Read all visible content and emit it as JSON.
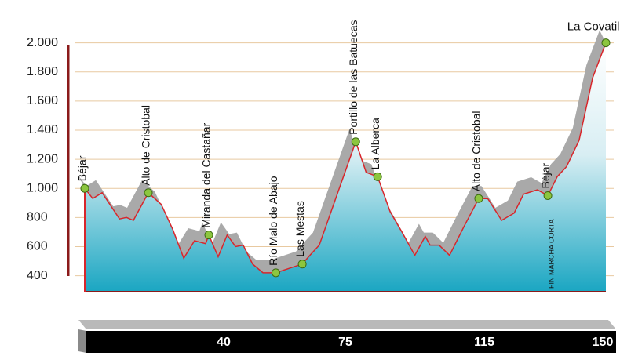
{
  "chart_data": {
    "type": "area",
    "x": [
      0,
      2.3,
      5,
      10,
      12,
      14,
      18.3,
      22,
      25.3,
      28.5,
      31.6,
      34.8,
      35.7,
      38.4,
      41,
      43.4,
      45.6,
      48.3,
      51.3,
      55,
      62.6,
      64.8,
      67.5,
      78,
      81,
      84.3,
      87.9,
      91.3,
      95,
      98,
      99.4,
      102,
      105,
      109,
      113.4,
      116,
      120,
      123.6,
      126.3,
      130.3,
      133.3,
      136,
      138.7,
      142.3,
      146.2,
      150
    ],
    "values": [
      1000,
      930,
      970,
      790,
      800,
      780,
      970,
      890,
      720,
      520,
      640,
      620,
      680,
      530,
      680,
      600,
      610,
      480,
      420,
      420,
      480,
      540,
      610,
      1320,
      1110,
      1080,
      840,
      700,
      540,
      670,
      610,
      610,
      540,
      730,
      930,
      930,
      780,
      830,
      960,
      990,
      950,
      1080,
      1150,
      1330,
      1760,
      2000
    ],
    "color": "#d8262b",
    "xlim": [
      0,
      150
    ],
    "xticks": [
      40,
      75,
      115,
      150
    ],
    "ylim": [
      290,
      2100
    ],
    "yticks": [
      {
        "value": 2000,
        "label": "2.000"
      },
      {
        "value": 1800,
        "label": "1.800"
      },
      {
        "value": 1600,
        "label": "1.600"
      },
      {
        "value": 1400,
        "label": "1.400"
      },
      {
        "value": 1200,
        "label": "1.200"
      },
      {
        "value": 1000,
        "label": "1.000"
      },
      800,
      600,
      400
    ],
    "grid": true,
    "waypoints": [
      {
        "name": "Béjar",
        "x": 0,
        "y": 1000
      },
      {
        "name": "Alto de Cristobal",
        "x": 18.3,
        "y": 970
      },
      {
        "name": "Miranda del Castañar",
        "x": 35.7,
        "y": 680
      },
      {
        "name": "Río Malo de Abajo",
        "x": 55,
        "y": 420
      },
      {
        "name": "Las Mestas",
        "x": 62.6,
        "y": 480
      },
      {
        "name": "Portillo de las Batuecas",
        "x": 78,
        "y": 1320
      },
      {
        "name": "La Alberca",
        "x": 84.3,
        "y": 1080
      },
      {
        "name": "Alto de Cristobal",
        "x": 113.4,
        "y": 930
      },
      {
        "name": "Béjar",
        "x": 133.3,
        "y": 950
      },
      {
        "name": "La Covatilla",
        "x": 150,
        "y": 2000
      }
    ],
    "annotation": "FIN MARCHA CORTA"
  }
}
